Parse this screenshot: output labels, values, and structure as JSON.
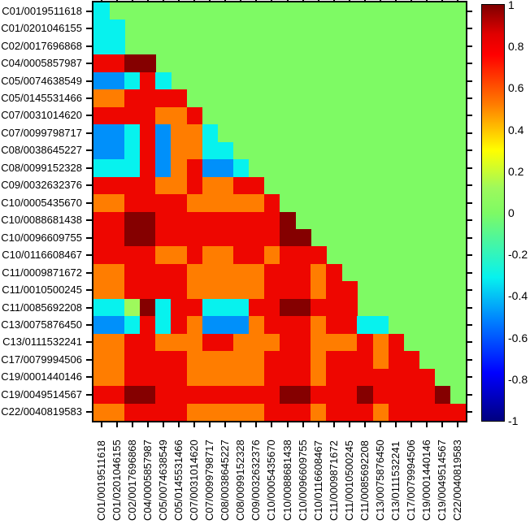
{
  "figure": {
    "background": "#ffffff",
    "axis_color": "#000000",
    "label_color": "#000000"
  },
  "palette": {
    "G": {
      "name": "green",
      "hex": "#7efa64",
      "value": 0
    },
    "Y": {
      "name": "yellow-green",
      "hex": "#9ef95c",
      "value": 0.15
    },
    "C": {
      "name": "cyan",
      "hex": "#07f2ee",
      "value": -0.3
    },
    "B": {
      "name": "blue",
      "hex": "#0090fa",
      "value": -0.55
    },
    "O": {
      "name": "orange",
      "hex": "#ff7d00",
      "value": 0.5
    },
    "R": {
      "name": "red",
      "hex": "#ee0600",
      "value": 0.8
    },
    "D": {
      "name": "dark-red",
      "hex": "#850000",
      "value": 1.0
    }
  },
  "chart_data": {
    "type": "heatmap",
    "title": "",
    "xlabel": "",
    "ylabel": "",
    "value_range": [
      -1,
      1
    ],
    "grid": false,
    "categories": [
      "C01/0019511618",
      "C01/0201046155",
      "C02/0017696868",
      "C04/0005857987",
      "C05/0074638549",
      "C05/0145531466",
      "C07/0031014620",
      "C07/0099798717",
      "C08/0038645227",
      "C08/0099152328",
      "C09/0032632376",
      "C10/0005435670",
      "C10/0088681438",
      "C10/0096609755",
      "C10/0116608467",
      "C11/0009871672",
      "C11/0010500245",
      "C11/0085692208",
      "C13/0075876450",
      "C13/0111532241",
      "C17/0079994506",
      "C19/0001440146",
      "C19/0049514567",
      "C22/0040819583"
    ],
    "matrix_lower_triangle_keys": [
      "C",
      "CC",
      "CCG",
      "RRDD",
      "BBCRC",
      "OORRRR",
      "RRRROOR",
      "BBCRBOOC",
      "BBCRBOOCC",
      "CCCRBORBBC",
      "RRRROOROORR",
      "OORRRROOOOOR",
      "RRDDRRRRRRRRD",
      "RRDDRRRRRRRRDD",
      "RRRROOROORRORRR",
      "OORRRROOOOORRROR",
      "OORRRROOOOORRRORR",
      "CCYDCRRCCCRRDDRRRG",
      "BBCRCROBBBORRRORRCC",
      "OORROOORROOORROOOROR",
      "OORRRROOOOORRRORRRORR",
      "OORRRROOOOORRRORRRRRRR",
      "RRDDRRRRRRRRDDRRRDRRRRD",
      "OORRRROOOOORRRORRRORRRRR"
    ],
    "upper_triangle_value": 0,
    "colorbar": {
      "position": "right",
      "colormap": "jet",
      "tick_labels": [
        "1",
        "0.8",
        "0.6",
        "0.4",
        "0.2",
        "0",
        "-0.2",
        "-0.4",
        "-0.6",
        "-0.8",
        "-1"
      ],
      "tick_values": [
        1,
        0.8,
        0.6,
        0.4,
        0.2,
        0,
        -0.2,
        -0.4,
        -0.6,
        -0.8,
        -1
      ],
      "gradient_stops_top_to_bottom": [
        {
          "hex": "#7f0000",
          "at": 0
        },
        {
          "hex": "#e00000",
          "at": 0.07
        },
        {
          "hex": "#ff0000",
          "at": 0.12
        },
        {
          "hex": "#ff7d00",
          "at": 0.24
        },
        {
          "hex": "#ffff00",
          "at": 0.35
        },
        {
          "hex": "#9ef95c",
          "at": 0.44
        },
        {
          "hex": "#7efa64",
          "at": 0.5
        },
        {
          "hex": "#07f2ee",
          "at": 0.655
        },
        {
          "hex": "#0080ff",
          "at": 0.76
        },
        {
          "hex": "#0000ff",
          "at": 0.885
        },
        {
          "hex": "#00007f",
          "at": 1
        }
      ]
    }
  }
}
